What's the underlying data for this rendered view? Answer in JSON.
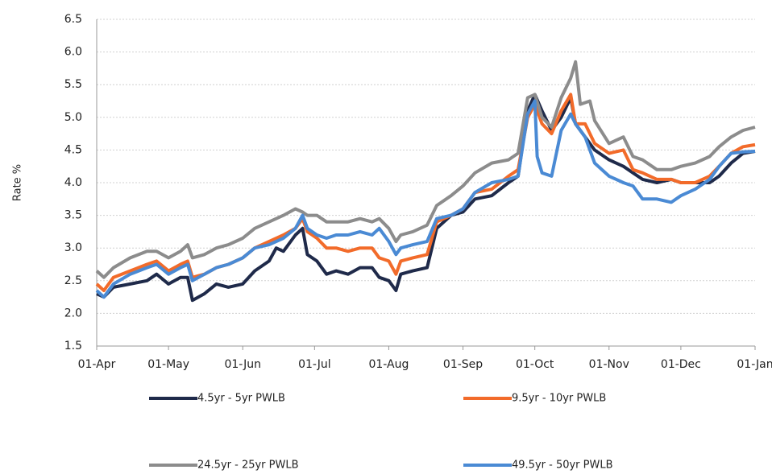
{
  "chart_data": {
    "type": "line",
    "y_label": "Rate %",
    "xlim": [
      0,
      275
    ],
    "xticks": [
      {
        "value": 0,
        "label": "01-Apr"
      },
      {
        "value": 30,
        "label": "01-May"
      },
      {
        "value": 61,
        "label": "01-Jun"
      },
      {
        "value": 91,
        "label": "01-Jul"
      },
      {
        "value": 122,
        "label": "01-Aug"
      },
      {
        "value": 153,
        "label": "01-Sep"
      },
      {
        "value": 183,
        "label": "01-Oct"
      },
      {
        "value": 214,
        "label": "01-Nov"
      },
      {
        "value": 244,
        "label": "01-Dec"
      },
      {
        "value": 275,
        "label": "01-Jan"
      }
    ],
    "ylim": [
      1.5,
      6.5
    ],
    "yticks": [
      {
        "value": 1.5,
        "label": "1.5"
      },
      {
        "value": 2,
        "label": "2.0"
      },
      {
        "value": 2.5,
        "label": "2.5"
      },
      {
        "value": 3,
        "label": "3.0"
      },
      {
        "value": 3.5,
        "label": "3.5"
      },
      {
        "value": 4,
        "label": "4.0"
      },
      {
        "value": 4.5,
        "label": "4.5"
      },
      {
        "value": 5,
        "label": "5.0"
      },
      {
        "value": 5.5,
        "label": "5.5"
      },
      {
        "value": 6,
        "label": "6.0"
      },
      {
        "value": 6.5,
        "label": "6.5"
      }
    ],
    "grid": true,
    "series": [
      {
        "name": "4.5yr - 5yr PWLB",
        "color": "#1f2a4a",
        "x": [
          0,
          3,
          7,
          14,
          21,
          25,
          30,
          35,
          38,
          40,
          45,
          50,
          55,
          61,
          66,
          72,
          75,
          78,
          83,
          86,
          88,
          92,
          96,
          100,
          105,
          110,
          115,
          118,
          122,
          125,
          127,
          132,
          138,
          142,
          148,
          153,
          158,
          165,
          172,
          176,
          180,
          183,
          186,
          190,
          194,
          198,
          200,
          204,
          208,
          214,
          220,
          224,
          228,
          234,
          240,
          244,
          250,
          256,
          260,
          265,
          270,
          275
        ],
        "values": [
          2.3,
          2.25,
          2.4,
          2.45,
          2.5,
          2.6,
          2.45,
          2.55,
          2.55,
          2.2,
          2.3,
          2.45,
          2.4,
          2.45,
          2.65,
          2.8,
          3.0,
          2.95,
          3.2,
          3.3,
          2.9,
          2.8,
          2.6,
          2.65,
          2.6,
          2.7,
          2.7,
          2.55,
          2.5,
          2.35,
          2.6,
          2.65,
          2.7,
          3.3,
          3.5,
          3.55,
          3.75,
          3.8,
          4.0,
          4.1,
          5.1,
          5.35,
          5.1,
          4.8,
          5.0,
          5.3,
          4.9,
          4.7,
          4.5,
          4.35,
          4.25,
          4.15,
          4.05,
          4.0,
          4.05,
          4.0,
          4.0,
          4.0,
          4.1,
          4.3,
          4.45,
          4.48
        ]
      },
      {
        "name": "9.5yr - 10yr PWLB",
        "color": "#f26b2a",
        "x": [
          0,
          3,
          7,
          14,
          21,
          25,
          30,
          35,
          38,
          40,
          45,
          50,
          55,
          61,
          66,
          72,
          78,
          83,
          86,
          88,
          92,
          96,
          100,
          105,
          110,
          115,
          118,
          122,
          125,
          127,
          132,
          138,
          142,
          148,
          153,
          158,
          165,
          172,
          176,
          180,
          183,
          186,
          190,
          194,
          198,
          200,
          204,
          208,
          214,
          220,
          224,
          228,
          234,
          240,
          244,
          250,
          256,
          260,
          265,
          270,
          275
        ],
        "values": [
          2.45,
          2.35,
          2.55,
          2.65,
          2.75,
          2.8,
          2.65,
          2.75,
          2.8,
          2.55,
          2.6,
          2.7,
          2.75,
          2.85,
          3.0,
          3.1,
          3.2,
          3.3,
          3.45,
          3.25,
          3.15,
          3.0,
          3.0,
          2.95,
          3.0,
          3.0,
          2.85,
          2.8,
          2.6,
          2.8,
          2.85,
          2.9,
          3.4,
          3.5,
          3.6,
          3.85,
          3.9,
          4.1,
          4.2,
          5.0,
          5.2,
          4.9,
          4.75,
          5.1,
          5.35,
          4.9,
          4.9,
          4.6,
          4.45,
          4.5,
          4.2,
          4.15,
          4.05,
          4.05,
          4.0,
          4.0,
          4.1,
          4.25,
          4.45,
          4.55,
          4.58
        ]
      },
      {
        "name": "24.5yr - 25yr PWLB",
        "color": "#8c8c8c",
        "x": [
          0,
          3,
          7,
          14,
          21,
          25,
          30,
          35,
          38,
          40,
          45,
          50,
          55,
          61,
          66,
          72,
          78,
          83,
          86,
          88,
          92,
          96,
          100,
          105,
          110,
          115,
          118,
          122,
          125,
          127,
          132,
          138,
          142,
          148,
          153,
          158,
          165,
          172,
          176,
          180,
          183,
          186,
          190,
          194,
          198,
          200,
          202,
          206,
          208,
          214,
          220,
          224,
          228,
          234,
          240,
          244,
          250,
          256,
          260,
          265,
          270,
          275
        ],
        "values": [
          2.65,
          2.55,
          2.7,
          2.85,
          2.95,
          2.95,
          2.85,
          2.95,
          3.05,
          2.85,
          2.9,
          3.0,
          3.05,
          3.15,
          3.3,
          3.4,
          3.5,
          3.6,
          3.55,
          3.5,
          3.5,
          3.4,
          3.4,
          3.4,
          3.45,
          3.4,
          3.45,
          3.3,
          3.1,
          3.2,
          3.25,
          3.35,
          3.65,
          3.8,
          3.95,
          4.15,
          4.3,
          4.35,
          4.45,
          5.3,
          5.35,
          5.0,
          4.85,
          5.3,
          5.6,
          5.85,
          5.2,
          5.25,
          4.95,
          4.6,
          4.7,
          4.4,
          4.35,
          4.2,
          4.2,
          4.25,
          4.3,
          4.4,
          4.55,
          4.7,
          4.8,
          4.85
        ]
      },
      {
        "name": "49.5yr - 50yr PWLB",
        "color": "#4a8ad4",
        "x": [
          0,
          3,
          7,
          14,
          21,
          25,
          30,
          35,
          38,
          40,
          45,
          50,
          55,
          61,
          66,
          72,
          78,
          83,
          86,
          88,
          92,
          96,
          100,
          105,
          110,
          115,
          118,
          122,
          125,
          127,
          132,
          138,
          142,
          148,
          153,
          158,
          165,
          172,
          176,
          180,
          183,
          184,
          186,
          190,
          194,
          198,
          200,
          204,
          208,
          214,
          220,
          224,
          228,
          234,
          240,
          244,
          250,
          256,
          260,
          265,
          270,
          275
        ],
        "values": [
          2.35,
          2.25,
          2.45,
          2.6,
          2.7,
          2.75,
          2.6,
          2.7,
          2.75,
          2.5,
          2.6,
          2.7,
          2.75,
          2.85,
          3.0,
          3.05,
          3.15,
          3.3,
          3.5,
          3.3,
          3.2,
          3.15,
          3.2,
          3.2,
          3.25,
          3.2,
          3.3,
          3.1,
          2.9,
          3.0,
          3.05,
          3.1,
          3.45,
          3.5,
          3.6,
          3.85,
          4.0,
          4.05,
          4.1,
          5.05,
          5.25,
          4.4,
          4.15,
          4.1,
          4.8,
          5.05,
          4.9,
          4.7,
          4.3,
          4.1,
          4.0,
          3.95,
          3.75,
          3.75,
          3.7,
          3.8,
          3.9,
          4.05,
          4.25,
          4.45,
          4.47,
          4.48
        ]
      }
    ]
  }
}
